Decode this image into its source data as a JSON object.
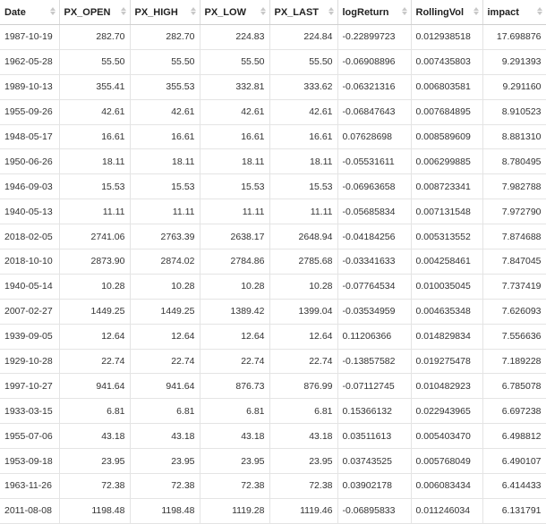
{
  "table": {
    "columns": [
      "Date",
      "PX_OPEN",
      "PX_HIGH",
      "PX_LOW",
      "PX_LAST",
      "logReturn",
      "RollingVol",
      "impact"
    ],
    "rows": [
      [
        "1987-10-19",
        "282.70",
        "282.70",
        "224.83",
        "224.84",
        "-0.22899723",
        "0.012938518",
        "17.698876"
      ],
      [
        "1962-05-28",
        "55.50",
        "55.50",
        "55.50",
        "55.50",
        "-0.06908896",
        "0.007435803",
        "9.291393"
      ],
      [
        "1989-10-13",
        "355.41",
        "355.53",
        "332.81",
        "333.62",
        "-0.06321316",
        "0.006803581",
        "9.291160"
      ],
      [
        "1955-09-26",
        "42.61",
        "42.61",
        "42.61",
        "42.61",
        "-0.06847643",
        "0.007684895",
        "8.910523"
      ],
      [
        "1948-05-17",
        "16.61",
        "16.61",
        "16.61",
        "16.61",
        "0.07628698",
        "0.008589609",
        "8.881310"
      ],
      [
        "1950-06-26",
        "18.11",
        "18.11",
        "18.11",
        "18.11",
        "-0.05531611",
        "0.006299885",
        "8.780495"
      ],
      [
        "1946-09-03",
        "15.53",
        "15.53",
        "15.53",
        "15.53",
        "-0.06963658",
        "0.008723341",
        "7.982788"
      ],
      [
        "1940-05-13",
        "11.11",
        "11.11",
        "11.11",
        "11.11",
        "-0.05685834",
        "0.007131548",
        "7.972790"
      ],
      [
        "2018-02-05",
        "2741.06",
        "2763.39",
        "2638.17",
        "2648.94",
        "-0.04184256",
        "0.005313552",
        "7.874688"
      ],
      [
        "2018-10-10",
        "2873.90",
        "2874.02",
        "2784.86",
        "2785.68",
        "-0.03341633",
        "0.004258461",
        "7.847045"
      ],
      [
        "1940-05-14",
        "10.28",
        "10.28",
        "10.28",
        "10.28",
        "-0.07764534",
        "0.010035045",
        "7.737419"
      ],
      [
        "2007-02-27",
        "1449.25",
        "1449.25",
        "1389.42",
        "1399.04",
        "-0.03534959",
        "0.004635348",
        "7.626093"
      ],
      [
        "1939-09-05",
        "12.64",
        "12.64",
        "12.64",
        "12.64",
        "0.11206366",
        "0.014829834",
        "7.556636"
      ],
      [
        "1929-10-28",
        "22.74",
        "22.74",
        "22.74",
        "22.74",
        "-0.13857582",
        "0.019275478",
        "7.189228"
      ],
      [
        "1997-10-27",
        "941.64",
        "941.64",
        "876.73",
        "876.99",
        "-0.07112745",
        "0.010482923",
        "6.785078"
      ],
      [
        "1933-03-15",
        "6.81",
        "6.81",
        "6.81",
        "6.81",
        "0.15366132",
        "0.022943965",
        "6.697238"
      ],
      [
        "1955-07-06",
        "43.18",
        "43.18",
        "43.18",
        "43.18",
        "0.03511613",
        "0.005403470",
        "6.498812"
      ],
      [
        "1953-09-18",
        "23.95",
        "23.95",
        "23.95",
        "23.95",
        "0.03743525",
        "0.005768049",
        "6.490107"
      ],
      [
        "1963-11-26",
        "72.38",
        "72.38",
        "72.38",
        "72.38",
        "0.03902178",
        "0.006083434",
        "6.414433"
      ],
      [
        "2011-08-08",
        "1198.48",
        "1198.48",
        "1119.28",
        "1119.46",
        "-0.06895833",
        "0.011246034",
        "6.131791"
      ]
    ]
  }
}
